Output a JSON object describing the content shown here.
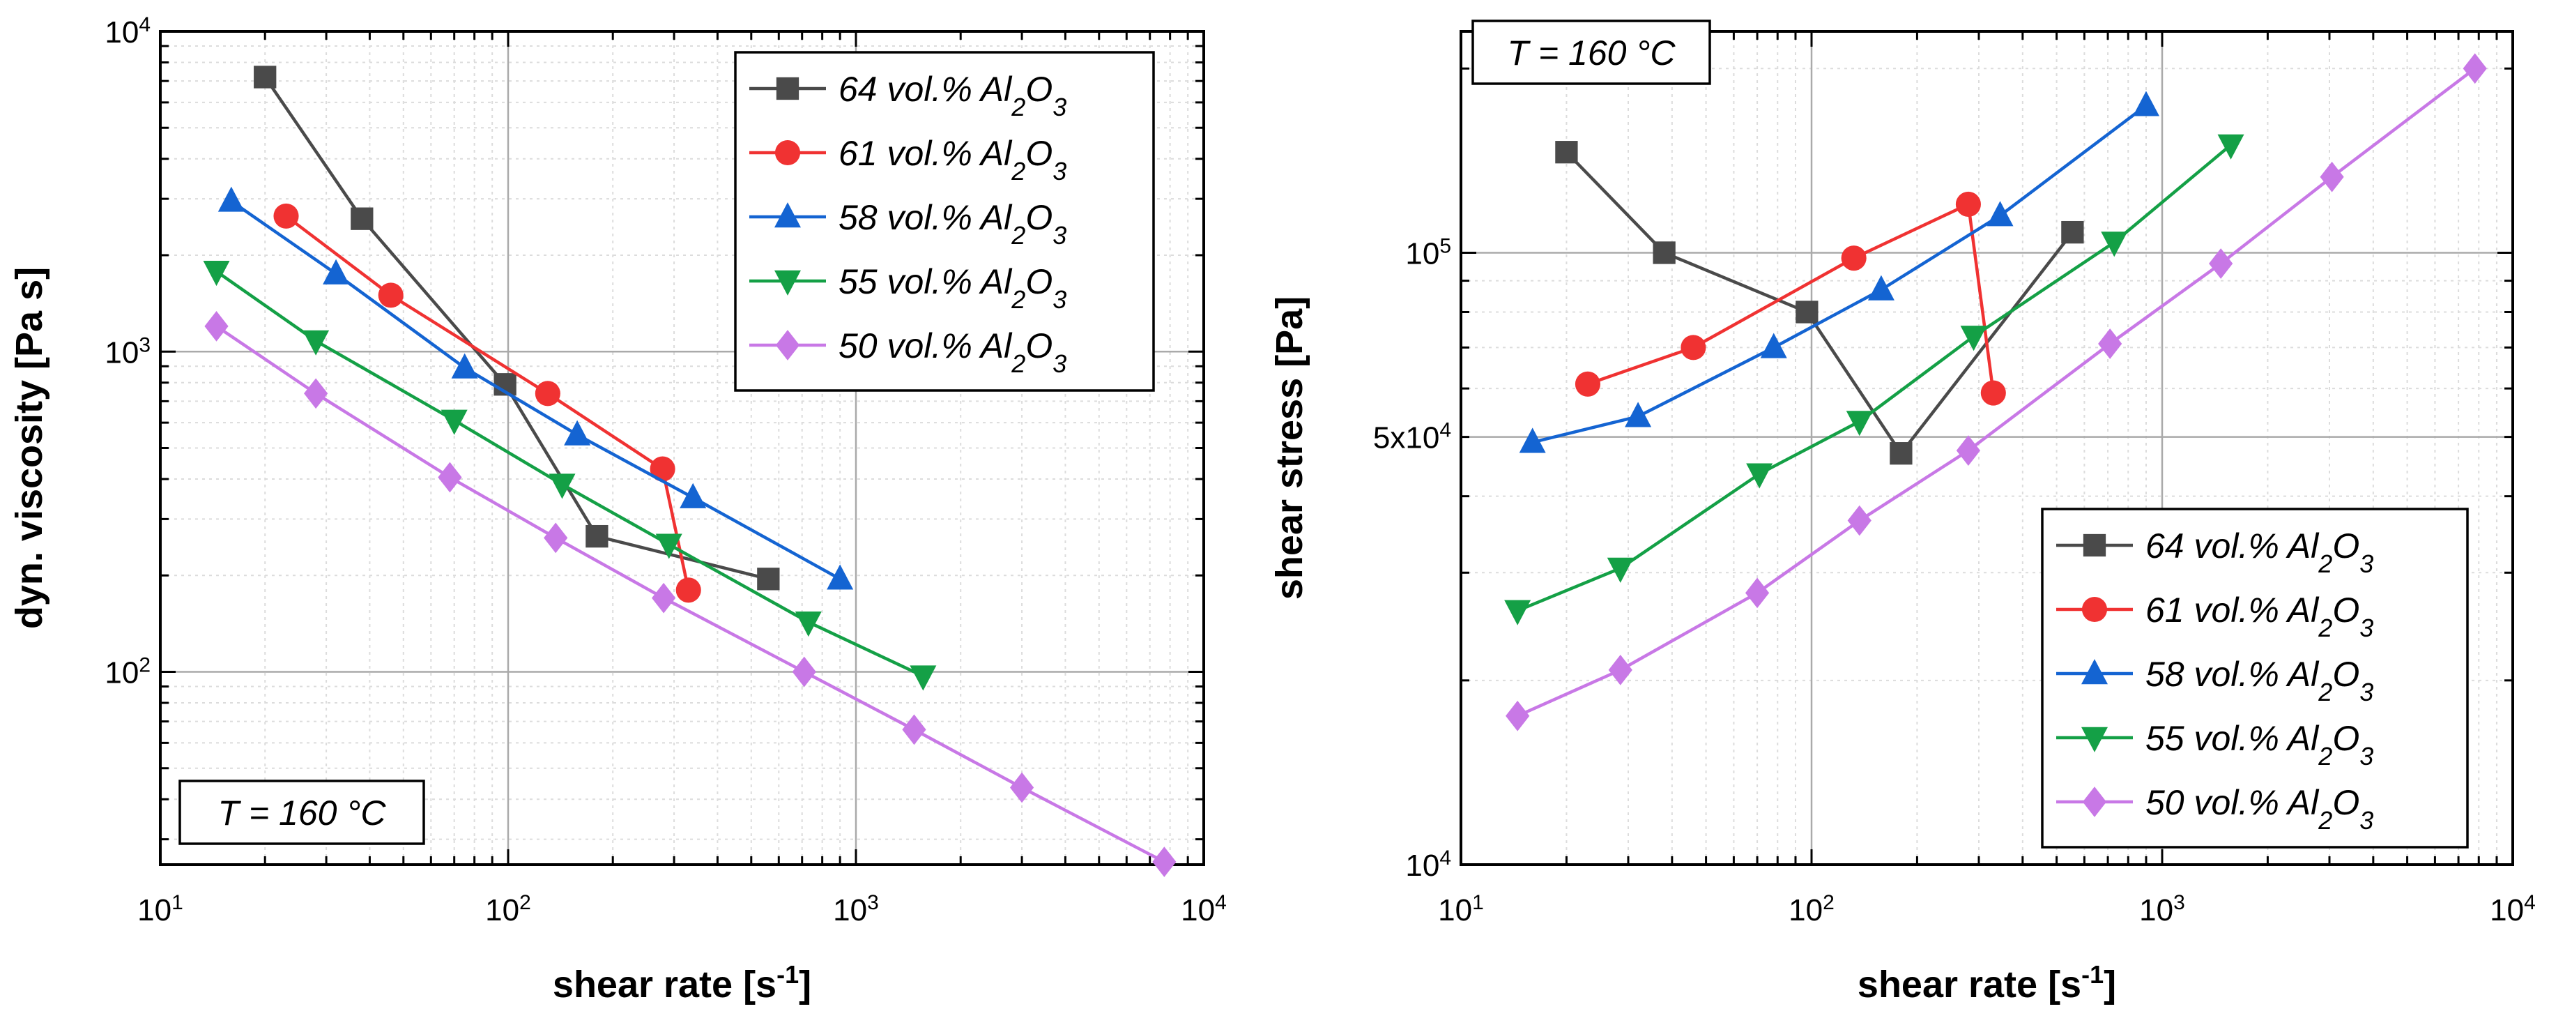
{
  "figure": {
    "panel_count": 2
  },
  "colors": {
    "64": "#4a4a4a",
    "61": "#f03232",
    "58": "#1464d2",
    "55": "#14a046",
    "50": "#c878e6",
    "grid_major": "#aaaaaa",
    "grid_minor": "#dcdcdc",
    "frame": "#000000"
  },
  "chart_data": [
    {
      "type": "line",
      "title": "",
      "xlabel": "shear rate",
      "xlabel_unit_base": "s",
      "xlabel_unit_exp": "-1",
      "ylabel": "dyn. viscosity",
      "ylabel_unit": "Pa s",
      "xscale": "log",
      "yscale": "log",
      "xlim": [
        10,
        10000
      ],
      "ylim": [
        25,
        10000
      ],
      "grid": true,
      "x_ticks": [
        {
          "value": 10,
          "base": "10",
          "exp": "1"
        },
        {
          "value": 100,
          "base": "10",
          "exp": "2"
        },
        {
          "value": 1000,
          "base": "10",
          "exp": "3"
        },
        {
          "value": 10000,
          "base": "10",
          "exp": "4"
        }
      ],
      "y_ticks": [
        {
          "value": 100,
          "base": "10",
          "exp": "2"
        },
        {
          "value": 1000,
          "base": "10",
          "exp": "3"
        },
        {
          "value": 10000,
          "base": "10",
          "exp": "4"
        }
      ],
      "legend_position": "top-right",
      "annotation": "T = 160 °C",
      "annotation_position": "bottom-left",
      "series": [
        {
          "key": "64",
          "name": "64 vol.% Al",
          "sub": "2",
          "tail": "O",
          "sub2": "3",
          "marker": "square",
          "points": [
            [
              20,
              7200
            ],
            [
              38,
              2600
            ],
            [
              98,
              790
            ],
            [
              180,
              265
            ],
            [
              560,
              195
            ]
          ]
        },
        {
          "key": "61",
          "name": "61 vol.% Al",
          "sub": "2",
          "tail": "O",
          "sub2": "3",
          "marker": "circle",
          "points": [
            [
              23,
              2650
            ],
            [
              46,
              1500
            ],
            [
              130,
              740
            ],
            [
              278,
              430
            ],
            [
              330,
              180
            ]
          ]
        },
        {
          "key": "58",
          "name": "58 vol.% Al",
          "sub": "2",
          "tail": "O",
          "sub2": "3",
          "marker": "triangle-up",
          "points": [
            [
              16,
              2950
            ],
            [
              32,
              1750
            ],
            [
              75,
              890
            ],
            [
              158,
              550
            ],
            [
              340,
              350
            ],
            [
              900,
              195
            ]
          ]
        },
        {
          "key": "55",
          "name": "55 vol.% Al",
          "sub": "2",
          "tail": "O",
          "sub2": "3",
          "marker": "triangle-down",
          "points": [
            [
              14.5,
              1780
            ],
            [
              28,
              1080
            ],
            [
              70,
              610
            ],
            [
              143,
              385
            ],
            [
              290,
              250
            ],
            [
              730,
              143
            ],
            [
              1560,
              97
            ]
          ]
        },
        {
          "key": "50",
          "name": "50 vol.% Al",
          "sub": "2",
          "tail": "O",
          "sub2": "3",
          "marker": "diamond",
          "points": [
            [
              14.5,
              1200
            ],
            [
              28,
              740
            ],
            [
              68,
              405
            ],
            [
              137,
              262
            ],
            [
              280,
              170
            ],
            [
              710,
              100
            ],
            [
              1470,
              66
            ],
            [
              3000,
              43.5
            ],
            [
              7700,
              25.5
            ]
          ]
        }
      ]
    },
    {
      "type": "line",
      "title": "",
      "xlabel": "shear rate",
      "xlabel_unit_base": "s",
      "xlabel_unit_exp": "-1",
      "ylabel": "shear stress",
      "ylabel_unit": "Pa",
      "xscale": "log",
      "yscale": "log",
      "xlim": [
        10,
        10000
      ],
      "ylim": [
        10000,
        230000
      ],
      "grid": true,
      "x_ticks": [
        {
          "value": 10,
          "base": "10",
          "exp": "1"
        },
        {
          "value": 100,
          "base": "10",
          "exp": "2"
        },
        {
          "value": 1000,
          "base": "10",
          "exp": "3"
        },
        {
          "value": 10000,
          "base": "10",
          "exp": "4"
        }
      ],
      "y_ticks": [
        {
          "value": 10000,
          "base": "10",
          "exp": "4"
        },
        {
          "value": 50000,
          "base": "5x10",
          "exp": "4"
        },
        {
          "value": 100000,
          "base": "10",
          "exp": "5"
        }
      ],
      "legend_position": "bottom-right",
      "annotation": "T = 160 °C",
      "annotation_position": "top-left",
      "series": [
        {
          "key": "64",
          "name": "64 vol.% Al",
          "sub": "2",
          "tail": "O",
          "sub2": "3",
          "marker": "square",
          "points": [
            [
              20,
              146000
            ],
            [
              38,
              100000
            ],
            [
              97,
              80000
            ],
            [
              180,
              47000
            ],
            [
              555,
              108000
            ]
          ]
        },
        {
          "key": "61",
          "name": "61 vol.% Al",
          "sub": "2",
          "tail": "O",
          "sub2": "3",
          "marker": "circle",
          "points": [
            [
              23,
              61000
            ],
            [
              46,
              70000
            ],
            [
              132,
              98000
            ],
            [
              280,
              120000
            ],
            [
              330,
              59000
            ]
          ]
        },
        {
          "key": "58",
          "name": "58 vol.% Al",
          "sub": "2",
          "tail": "O",
          "sub2": "3",
          "marker": "triangle-up",
          "points": [
            [
              16,
              49000
            ],
            [
              32,
              54000
            ],
            [
              78,
              70000
            ],
            [
              158,
              87000
            ],
            [
              345,
              115000
            ],
            [
              900,
              174000
            ]
          ]
        },
        {
          "key": "55",
          "name": "55 vol.% Al",
          "sub": "2",
          "tail": "O",
          "sub2": "3",
          "marker": "triangle-down",
          "points": [
            [
              14.5,
              26000
            ],
            [
              28.5,
              30500
            ],
            [
              71,
              43500
            ],
            [
              137,
              53000
            ],
            [
              290,
              73000
            ],
            [
              730,
              104000
            ],
            [
              1570,
              150000
            ]
          ]
        },
        {
          "key": "50",
          "name": "50 vol.% Al",
          "sub": "2",
          "tail": "O",
          "sub2": "3",
          "marker": "diamond",
          "points": [
            [
              14.5,
              17500
            ],
            [
              28.5,
              20800
            ],
            [
              70,
              27800
            ],
            [
              137,
              36500
            ],
            [
              280,
              47500
            ],
            [
              710,
              71000
            ],
            [
              1470,
              96000
            ],
            [
              3050,
              133000
            ],
            [
              7800,
              200000
            ]
          ]
        }
      ]
    }
  ]
}
